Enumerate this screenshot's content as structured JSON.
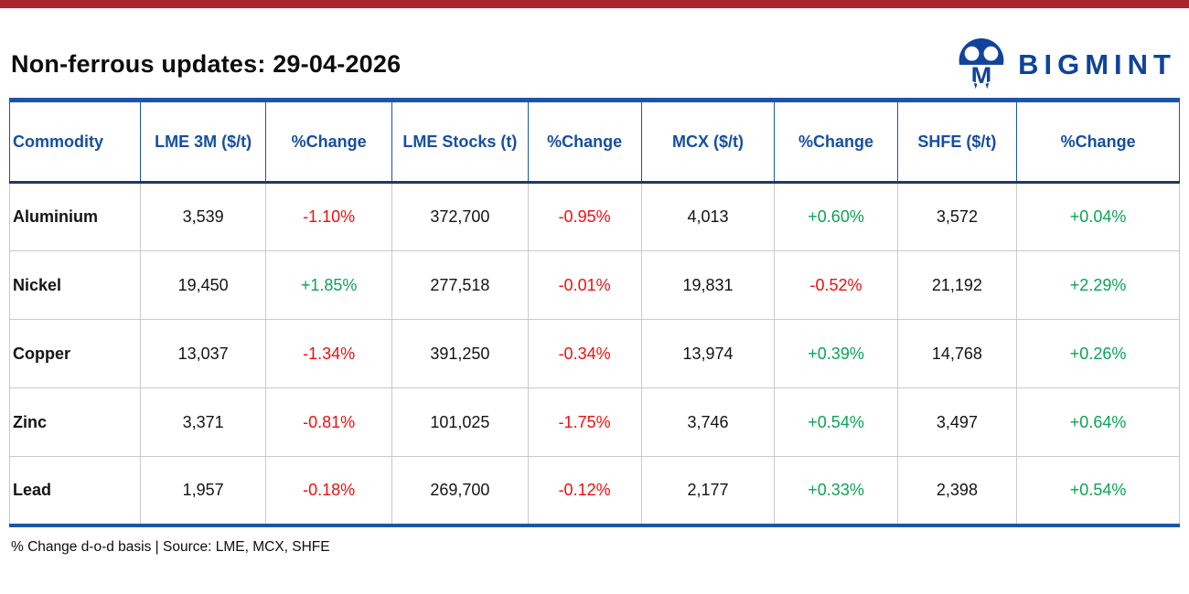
{
  "header": {
    "title": "Non-ferrous updates: 29-04-2026",
    "brand": "BIGMINT"
  },
  "table": {
    "columns": [
      "Commodity",
      "LME 3M ($/t)",
      "%Change",
      "LME Stocks (t)",
      "%Change",
      "MCX ($/t)",
      "%Change",
      "SHFE ($/t)",
      "%Change"
    ],
    "rows": [
      {
        "commodity": "Aluminium",
        "values": [
          {
            "text": "3,539",
            "tone": "neutral"
          },
          {
            "text": "-1.10%",
            "tone": "down"
          },
          {
            "text": "372,700",
            "tone": "neutral"
          },
          {
            "text": "-0.95%",
            "tone": "down"
          },
          {
            "text": "4,013",
            "tone": "neutral"
          },
          {
            "text": "+0.60%",
            "tone": "up"
          },
          {
            "text": "3,572",
            "tone": "neutral"
          },
          {
            "text": "+0.04%",
            "tone": "up"
          }
        ]
      },
      {
        "commodity": "Nickel",
        "values": [
          {
            "text": "19,450",
            "tone": "neutral"
          },
          {
            "text": "+1.85%",
            "tone": "up"
          },
          {
            "text": "277,518",
            "tone": "neutral"
          },
          {
            "text": "-0.01%",
            "tone": "down"
          },
          {
            "text": "19,831",
            "tone": "neutral"
          },
          {
            "text": "-0.52%",
            "tone": "down"
          },
          {
            "text": "21,192",
            "tone": "neutral"
          },
          {
            "text": "+2.29%",
            "tone": "up"
          }
        ]
      },
      {
        "commodity": "Copper",
        "values": [
          {
            "text": "13,037",
            "tone": "neutral"
          },
          {
            "text": "-1.34%",
            "tone": "down"
          },
          {
            "text": "391,250",
            "tone": "neutral"
          },
          {
            "text": "-0.34%",
            "tone": "down"
          },
          {
            "text": "13,974",
            "tone": "neutral"
          },
          {
            "text": "+0.39%",
            "tone": "up"
          },
          {
            "text": "14,768",
            "tone": "neutral"
          },
          {
            "text": "+0.26%",
            "tone": "up"
          }
        ]
      },
      {
        "commodity": "Zinc",
        "values": [
          {
            "text": "3,371",
            "tone": "neutral"
          },
          {
            "text": "-0.81%",
            "tone": "down"
          },
          {
            "text": "101,025",
            "tone": "neutral"
          },
          {
            "text": "-1.75%",
            "tone": "down"
          },
          {
            "text": "3,746",
            "tone": "neutral"
          },
          {
            "text": "+0.54%",
            "tone": "up"
          },
          {
            "text": "3,497",
            "tone": "neutral"
          },
          {
            "text": "+0.64%",
            "tone": "up"
          }
        ]
      },
      {
        "commodity": "Lead",
        "values": [
          {
            "text": "1,957",
            "tone": "neutral"
          },
          {
            "text": "-0.18%",
            "tone": "down"
          },
          {
            "text": "269,700",
            "tone": "neutral"
          },
          {
            "text": "-0.12%",
            "tone": "down"
          },
          {
            "text": "2,177",
            "tone": "neutral"
          },
          {
            "text": "+0.33%",
            "tone": "up"
          },
          {
            "text": "2,398",
            "tone": "neutral"
          },
          {
            "text": "+0.54%",
            "tone": "up"
          }
        ]
      }
    ]
  },
  "footer": {
    "note": "% Change d-o-d basis | Source: LME, MCX, SHFE"
  },
  "colors": {
    "accent_bar": "#a8232a",
    "brand_blue": "#10439a",
    "header_text_blue": "#164fa0",
    "table_border_blue": "#1c55a8",
    "header_divider_navy": "#22386b",
    "grid_gray": "#c9c9c9",
    "positive_green": "#0aa356",
    "negative_red": "#f20d0d"
  },
  "chart_data": {
    "type": "table",
    "title": "Non-ferrous updates: 29-04-2026",
    "columns": [
      "Commodity",
      "LME 3M ($/t)",
      "%Change",
      "LME Stocks (t)",
      "%Change",
      "MCX ($/t)",
      "%Change",
      "SHFE ($/t)",
      "%Change"
    ],
    "rows": [
      [
        "Aluminium",
        "3,539",
        "-1.10%",
        "372,700",
        "-0.95%",
        "4,013",
        "+0.60%",
        "3,572",
        "+0.04%"
      ],
      [
        "Nickel",
        "19,450",
        "+1.85%",
        "277,518",
        "-0.01%",
        "19,831",
        "-0.52%",
        "21,192",
        "+2.29%"
      ],
      [
        "Copper",
        "13,037",
        "-1.34%",
        "391,250",
        "-0.34%",
        "13,974",
        "+0.39%",
        "14,768",
        "+0.26%"
      ],
      [
        "Zinc",
        "3,371",
        "-0.81%",
        "101,025",
        "-1.75%",
        "3,746",
        "+0.54%",
        "3,497",
        "+0.64%"
      ],
      [
        "Lead",
        "1,957",
        "-0.18%",
        "269,700",
        "-0.12%",
        "2,177",
        "+0.33%",
        "2,398",
        "+0.54%"
      ]
    ],
    "footnote": "% Change d-o-d basis | Source: LME, MCX, SHFE"
  }
}
